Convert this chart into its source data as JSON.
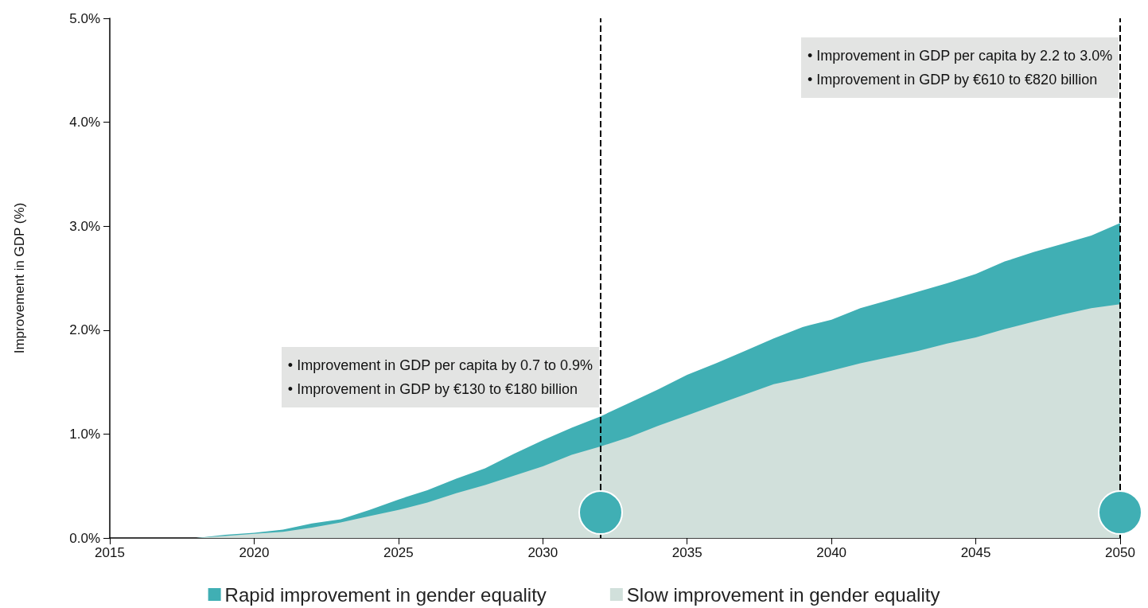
{
  "chart_data": {
    "type": "area",
    "ylabel": "Improvement in GDP (%)",
    "stacked": true,
    "x": [
      2018,
      2019,
      2020,
      2021,
      2022,
      2023,
      2024,
      2025,
      2026,
      2027,
      2028,
      2029,
      2030,
      2031,
      2032,
      2033,
      2034,
      2035,
      2036,
      2037,
      2038,
      2039,
      2040,
      2041,
      2042,
      2043,
      2044,
      2045,
      2046,
      2047,
      2048,
      2049,
      2050
    ],
    "series": [
      {
        "name": "Slow improvement in gender equality",
        "color": "#d1e0db",
        "values": [
          0,
          0.02,
          0.04,
          0.06,
          0.1,
          0.15,
          0.21,
          0.27,
          0.34,
          0.43,
          0.51,
          0.6,
          0.69,
          0.8,
          0.88,
          0.97,
          1.08,
          1.18,
          1.28,
          1.38,
          1.48,
          1.54,
          1.61,
          1.68,
          1.74,
          1.8,
          1.87,
          1.93,
          2.01,
          2.08,
          2.15,
          2.21,
          2.25
        ]
      },
      {
        "name": "Rapid improvement in gender equality",
        "color": "#40afb4",
        "values": [
          0,
          0.01,
          0.01,
          0.02,
          0.04,
          0.03,
          0.06,
          0.1,
          0.12,
          0.14,
          0.16,
          0.21,
          0.25,
          0.26,
          0.29,
          0.33,
          0.35,
          0.39,
          0.4,
          0.42,
          0.44,
          0.49,
          0.49,
          0.53,
          0.55,
          0.57,
          0.58,
          0.61,
          0.65,
          0.67,
          0.68,
          0.7,
          0.78
        ]
      }
    ],
    "xlim": [
      2015,
      2050
    ],
    "xticks": [
      2015,
      2020,
      2025,
      2030,
      2035,
      2040,
      2045,
      2050
    ],
    "ylim": [
      0,
      5
    ],
    "yticks": [
      {
        "value": 0,
        "label": "0.0%"
      },
      {
        "value": 1,
        "label": "1.0%"
      },
      {
        "value": 2,
        "label": "2.0%"
      },
      {
        "value": 3,
        "label": "3.0%"
      },
      {
        "value": 4,
        "label": "4.0%"
      },
      {
        "value": 5,
        "label": "5.0%"
      }
    ],
    "ref_lines": [
      {
        "axis": "x",
        "value": 2032,
        "color": "#000000",
        "line_style": "dashed"
      },
      {
        "axis": "x",
        "value": 2050,
        "color": "#000000",
        "line_style": "dashed"
      }
    ],
    "annotations": [
      {
        "text": "• Improvement in GDP per capita by 0.7 to 0.9%\n• Improvement in GDP by €130 to €180 billion",
        "x": 2032,
        "y": 1.84
      },
      {
        "text": "• Improvement in GDP per capita by 2.2 to 3.0%\n• Improvement in GDP by €610 to €820 billion",
        "x": 2050,
        "y": 4.82
      }
    ],
    "grid": false,
    "legend": "bottom"
  }
}
